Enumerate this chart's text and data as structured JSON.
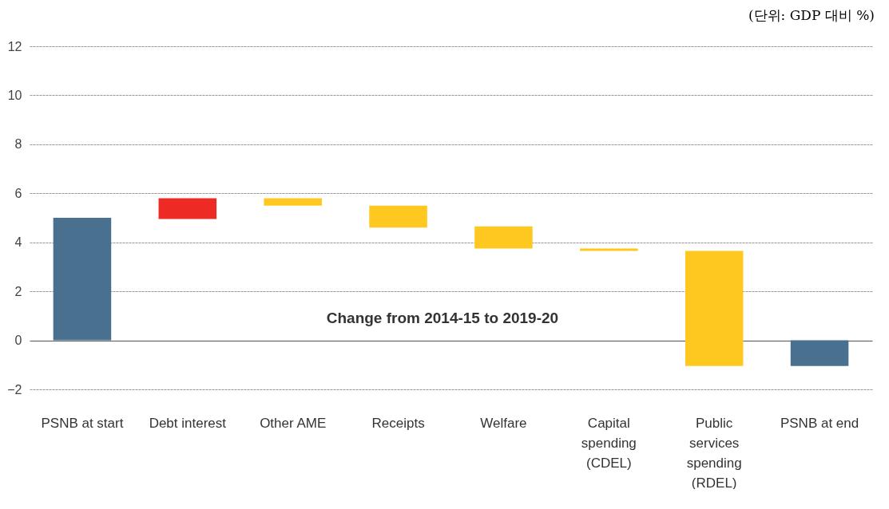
{
  "chart_data": {
    "type": "bar",
    "categories": [
      "PSNB at start",
      "Debt interest",
      "Other AME",
      "Receipts",
      "Welfare",
      "Capital spending (CDEL)",
      "Public services spending (RDEL)",
      "PSNB at end"
    ],
    "base": [
      0,
      4.95,
      5.8,
      5.5,
      4.65,
      3.75,
      3.65,
      0
    ],
    "values": [
      5,
      0.85,
      -0.3,
      -0.9,
      -0.9,
      -0.1,
      -4.7,
      -1.05
    ],
    "colors": [
      "#4a7090",
      "#ee2a24",
      "#fec820",
      "#fec820",
      "#fec820",
      "#fec820",
      "#fec820",
      "#4a7090"
    ],
    "ylim": [
      -2,
      12
    ],
    "yticks": [
      -2,
      0,
      2,
      4,
      6,
      8,
      10,
      12
    ],
    "grid": "y",
    "annotations": [
      "(단위: GDP 대비 %)",
      "Change from 2014-15 to 2019-20"
    ]
  }
}
